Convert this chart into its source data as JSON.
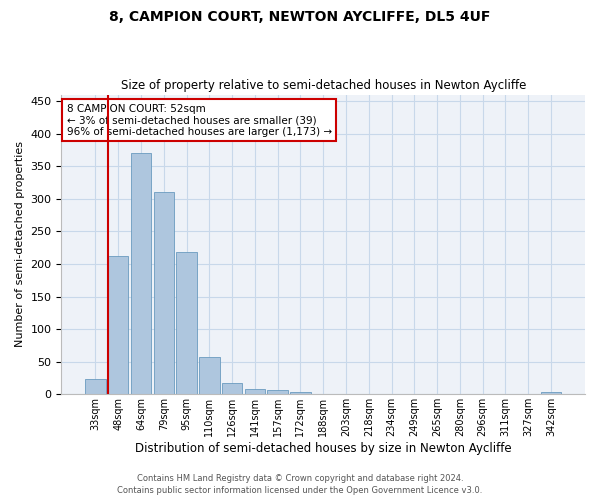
{
  "title": "8, CAMPION COURT, NEWTON AYCLIFFE, DL5 4UF",
  "subtitle": "Size of property relative to semi-detached houses in Newton Aycliffe",
  "xlabel": "Distribution of semi-detached houses by size in Newton Aycliffe",
  "ylabel": "Number of semi-detached properties",
  "footer_line1": "Contains HM Land Registry data © Crown copyright and database right 2024.",
  "footer_line2": "Contains public sector information licensed under the Open Government Licence v3.0.",
  "categories": [
    "33sqm",
    "48sqm",
    "64sqm",
    "79sqm",
    "95sqm",
    "110sqm",
    "126sqm",
    "141sqm",
    "157sqm",
    "172sqm",
    "188sqm",
    "203sqm",
    "218sqm",
    "234sqm",
    "249sqm",
    "265sqm",
    "280sqm",
    "296sqm",
    "311sqm",
    "327sqm",
    "342sqm"
  ],
  "values": [
    24,
    212,
    370,
    311,
    218,
    57,
    18,
    8,
    6,
    3,
    0,
    0,
    0,
    0,
    0,
    0,
    0,
    0,
    0,
    0,
    4
  ],
  "bar_color": "#aec6de",
  "bar_edge_color": "#6a9bbf",
  "grid_color": "#c8d8ea",
  "bg_color": "#eef2f8",
  "red_line_color": "#cc0000",
  "annotation_text": "8 CAMPION COURT: 52sqm\n← 3% of semi-detached houses are smaller (39)\n96% of semi-detached houses are larger (1,173) →",
  "annotation_box_color": "#ffffff",
  "annotation_box_edge": "#cc0000",
  "ylim": [
    0,
    460
  ],
  "yticks": [
    0,
    50,
    100,
    150,
    200,
    250,
    300,
    350,
    400,
    450
  ]
}
